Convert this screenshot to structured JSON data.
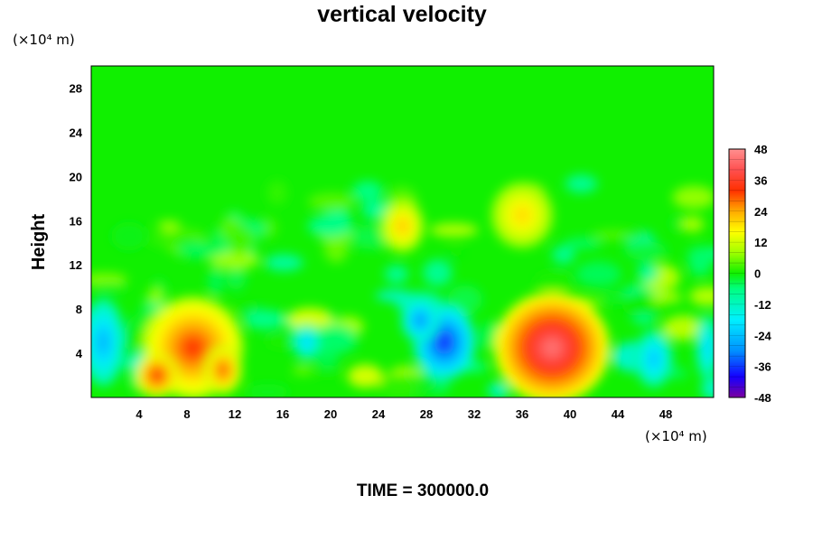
{
  "chart_data": {
    "type": "heatmap",
    "title": "vertical velocity",
    "ylabel": "Height",
    "x_unit": "(×10⁴ m)",
    "y_unit": "(×10⁴ m)",
    "footer": "TIME = 300000.0",
    "xlim": [
      0,
      52
    ],
    "ylim": [
      0,
      30
    ],
    "x_ticks": [
      4,
      8,
      12,
      16,
      20,
      24,
      28,
      32,
      36,
      40,
      44,
      48
    ],
    "y_ticks": [
      4,
      8,
      12,
      16,
      20,
      24,
      28
    ],
    "colorbar": {
      "range": [
        -48,
        48
      ],
      "ticks": [
        48,
        36,
        24,
        12,
        0,
        -12,
        -24,
        -36,
        -48
      ]
    },
    "features": [
      {
        "x": 8.5,
        "y": 4.5,
        "value": 32
      },
      {
        "x": 5.5,
        "y": 2.0,
        "value": 34
      },
      {
        "x": 11.0,
        "y": 2.5,
        "value": 30
      },
      {
        "x": 38.5,
        "y": 4.5,
        "value": 44
      },
      {
        "x": 29.5,
        "y": 5.0,
        "value": -38
      },
      {
        "x": 27.5,
        "y": 7.0,
        "value": -30
      },
      {
        "x": 1.0,
        "y": 5.0,
        "value": -26
      },
      {
        "x": 18.0,
        "y": 5.0,
        "value": -22
      },
      {
        "x": 47.0,
        "y": 3.5,
        "value": -24
      },
      {
        "x": 51.5,
        "y": 4.5,
        "value": -22
      },
      {
        "x": 26.0,
        "y": 15.5,
        "value": 22
      },
      {
        "x": 36.0,
        "y": 16.5,
        "value": 20
      }
    ]
  }
}
